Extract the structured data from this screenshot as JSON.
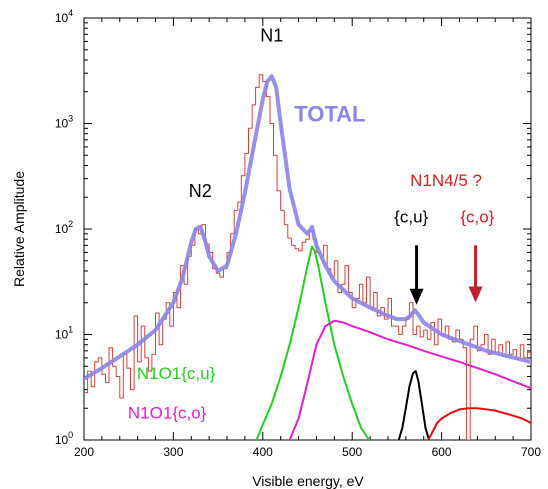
{
  "chart_data": {
    "type": "line",
    "title": "",
    "xlabel": "Visible energy, eV",
    "ylabel": "Relative Amplitude",
    "xlim": [
      200,
      700
    ],
    "ylim_log10": [
      0,
      4
    ],
    "y_scale": "log",
    "x_ticks": [
      {
        "value": 200,
        "label": "200"
      },
      {
        "value": 300,
        "label": "300"
      },
      {
        "value": 400,
        "label": "400"
      },
      {
        "value": 500,
        "label": "500"
      },
      {
        "value": 600,
        "label": "600"
      },
      {
        "value": 700,
        "label": "700"
      }
    ],
    "y_ticks": [
      {
        "value": 1,
        "base": "10",
        "exp": "0"
      },
      {
        "value": 10,
        "base": "10",
        "exp": "1"
      },
      {
        "value": 100,
        "base": "10",
        "exp": "2"
      },
      {
        "value": 1000,
        "base": "10",
        "exp": "3"
      },
      {
        "value": 10000,
        "base": "10",
        "exp": "4"
      }
    ],
    "grid": false,
    "series": [
      {
        "color": "#d0423a",
        "style": "step",
        "x": [
          200,
          204,
          208,
          212,
          216,
          220,
          224,
          228,
          232,
          236,
          240,
          244,
          248,
          252,
          256,
          260,
          264,
          268,
          272,
          276,
          280,
          284,
          288,
          292,
          296,
          300,
          304,
          308,
          312,
          316,
          320,
          324,
          328,
          332,
          336,
          340,
          344,
          348,
          352,
          356,
          360,
          364,
          368,
          372,
          376,
          380,
          384,
          388,
          392,
          396,
          400,
          404,
          408,
          412,
          416,
          420,
          424,
          428,
          432,
          436,
          440,
          444,
          448,
          452,
          456,
          460,
          464,
          468,
          472,
          476,
          480,
          484,
          488,
          492,
          496,
          500,
          504,
          508,
          512,
          516,
          520,
          524,
          528,
          532,
          536,
          540,
          544,
          548,
          552,
          556,
          560,
          564,
          568,
          572,
          576,
          580,
          584,
          588,
          592,
          596,
          600,
          604,
          608,
          612,
          616,
          620,
          624,
          628,
          632,
          636,
          640,
          644,
          648,
          652,
          656,
          660,
          664,
          668,
          672,
          676,
          680,
          684,
          688,
          692,
          696
        ],
        "y": [
          2.8,
          4.5,
          3.2,
          5.5,
          6.0,
          4.2,
          3.5,
          7.5,
          5.0,
          4.0,
          2.5,
          6.5,
          4.8,
          3.0,
          15,
          5.5,
          12,
          6.0,
          4.5,
          6.5,
          16,
          8,
          14,
          20,
          12,
          25,
          18,
          45,
          30,
          55,
          70,
          100,
          90,
          110,
          72,
          60,
          42,
          38,
          35,
          42,
          60,
          90,
          150,
          180,
          320,
          520,
          900,
          1500,
          2200,
          2900,
          2500,
          1800,
          1000,
          500,
          230,
          150,
          110,
          82,
          70,
          65,
          62,
          75,
          80,
          95,
          80,
          60,
          55,
          70,
          42,
          35,
          50,
          25,
          30,
          45,
          25,
          18,
          22,
          30,
          20,
          35,
          18,
          25,
          15,
          18,
          14,
          22,
          12,
          12,
          10,
          12,
          14,
          20,
          10,
          12,
          9.5,
          11,
          9,
          13,
          8,
          14,
          10,
          12,
          9,
          8.5,
          11,
          9,
          7.5,
          1.0,
          9,
          12,
          7,
          8,
          10,
          6.5,
          9,
          6.8,
          8,
          6.2,
          8.5,
          6.5,
          7.2,
          5.8,
          8,
          6,
          6.8
        ]
      },
      {
        "color": "#8a84e6",
        "style": "thick",
        "x": [
          200,
          220,
          240,
          260,
          280,
          300,
          310,
          320,
          325,
          330,
          335,
          340,
          350,
          360,
          370,
          380,
          390,
          400,
          405,
          410,
          415,
          420,
          430,
          440,
          450,
          455,
          460,
          470,
          480,
          500,
          520,
          540,
          550,
          560,
          565,
          570,
          575,
          580,
          600,
          650,
          700
        ],
        "y": [
          3.8,
          4.8,
          6.2,
          8,
          11,
          20,
          34,
          75,
          100,
          105,
          80,
          55,
          40,
          45,
          90,
          220,
          620,
          1700,
          2500,
          2800,
          2200,
          1000,
          240,
          110,
          90,
          105,
          70,
          45,
          32,
          22,
          18,
          15,
          14,
          14,
          15,
          17,
          15,
          13,
          10,
          7,
          5.5
        ]
      },
      {
        "color": "#1fd01f",
        "style": "line",
        "x": [
          393,
          400,
          410,
          420,
          430,
          440,
          445,
          450,
          455,
          458,
          462,
          470,
          480,
          490,
          500,
          510,
          519
        ],
        "y": [
          1,
          1.4,
          2.2,
          4,
          8,
          18,
          28,
          45,
          68,
          62,
          45,
          20,
          8,
          4,
          2.2,
          1.3,
          1
        ]
      },
      {
        "color": "#e020c8",
        "style": "line",
        "x": [
          430,
          440,
          450,
          460,
          470,
          480,
          490,
          500,
          520,
          540,
          560,
          580,
          600,
          620,
          640,
          660,
          680,
          700
        ],
        "y": [
          1,
          1.6,
          3.5,
          8,
          12,
          13.5,
          13,
          12,
          10.5,
          9,
          8,
          7,
          6.2,
          5.5,
          4.8,
          4.2,
          3.6,
          3.1
        ]
      },
      {
        "color": "#000000",
        "style": "line",
        "x": [
          552,
          556,
          560,
          564,
          568,
          571,
          574,
          578,
          582,
          586
        ],
        "y": [
          1,
          1.3,
          2,
          3.2,
          4.3,
          4.5,
          3.6,
          2.2,
          1.3,
          1
        ]
      },
      {
        "color": "#e01010",
        "style": "line",
        "x": [
          585,
          590,
          595,
          600,
          610,
          620,
          630,
          640,
          650,
          660,
          670,
          680,
          690,
          700
        ],
        "y": [
          1,
          1.2,
          1.45,
          1.6,
          1.8,
          1.95,
          2,
          2,
          1.95,
          1.9,
          1.8,
          1.7,
          1.6,
          1.45
        ]
      }
    ],
    "annotations": [
      {
        "text": "N1",
        "x": 410,
        "y": 6000,
        "color": "#000000",
        "size": 18,
        "weight": "normal"
      },
      {
        "text": "N2",
        "x": 330,
        "y": 200,
        "color": "#000000",
        "size": 18,
        "weight": "normal"
      },
      {
        "text": "TOTAL",
        "x": 475,
        "y": 1050,
        "color": "#8a84e6",
        "size": 22,
        "weight": "bold"
      },
      {
        "text": "N1N4/5 ?",
        "x": 605,
        "y": 255,
        "color": "#d02020",
        "size": 17,
        "weight": "normal"
      },
      {
        "text": "{c,u}",
        "x": 566,
        "y": 115,
        "color": "#000000",
        "size": 17,
        "weight": "normal"
      },
      {
        "text": "{c,o}",
        "x": 640,
        "y": 115,
        "color": "#d02020",
        "size": 17,
        "weight": "normal"
      },
      {
        "text": "N1O1{c,u}",
        "x": 303,
        "y": 3.8,
        "color": "#1fd01f",
        "size": 17,
        "weight": "normal"
      },
      {
        "text": "N1O1{c,o}",
        "x": 293,
        "y": 1.6,
        "color": "#e020c8",
        "size": 17,
        "weight": "normal"
      }
    ],
    "arrows": [
      {
        "color": "#000000",
        "x": 572,
        "y_from": 70,
        "y_to": 20
      },
      {
        "color": "#c0202a",
        "x": 638,
        "y_from": 70,
        "y_to": 21
      }
    ]
  }
}
